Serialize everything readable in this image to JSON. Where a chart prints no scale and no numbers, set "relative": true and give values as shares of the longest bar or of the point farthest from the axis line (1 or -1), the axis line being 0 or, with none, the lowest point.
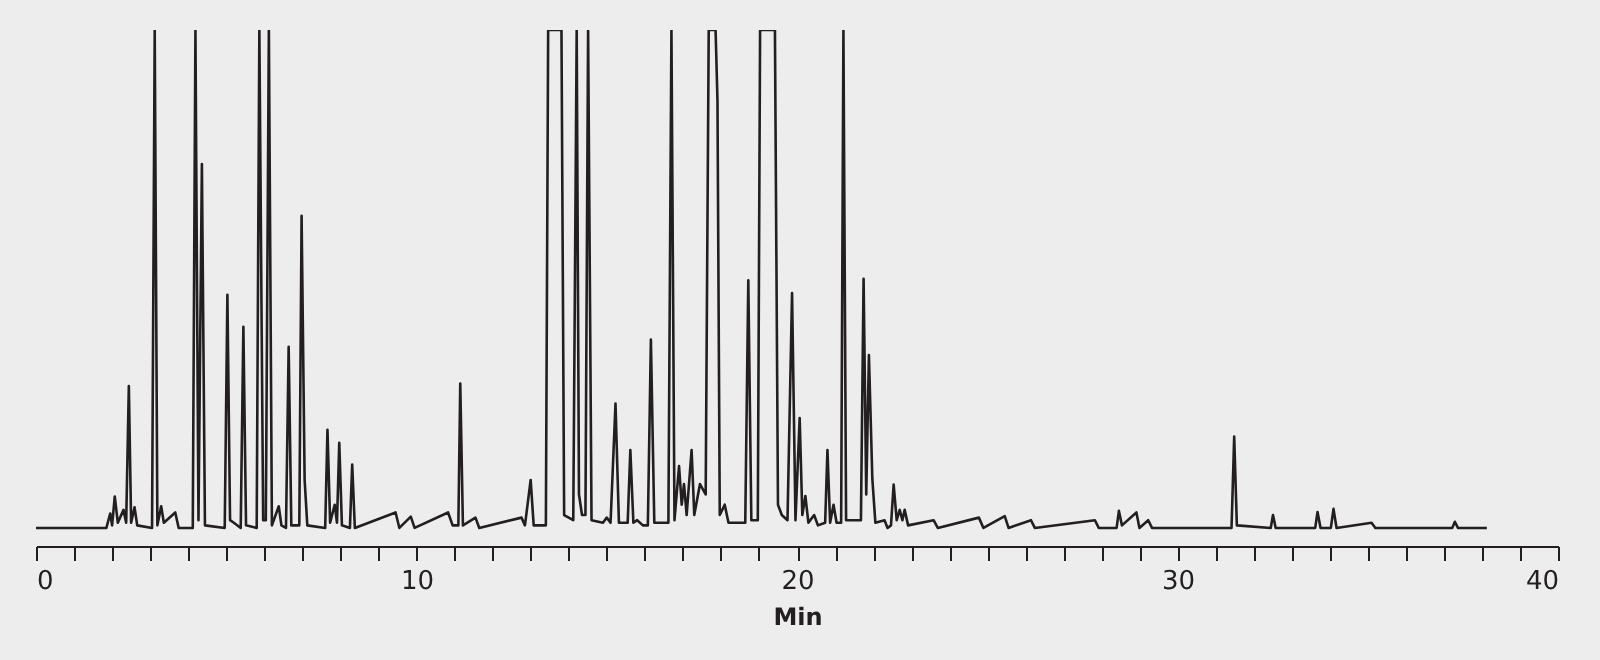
{
  "chart_data": {
    "type": "line",
    "xlabel": "Min",
    "relative": true,
    "color": "#231f20",
    "xlim": [
      0,
      40
    ],
    "xticks": [
      0,
      {
        "value": 1,
        "label": null
      },
      {
        "value": 2,
        "label": null
      },
      {
        "value": 3,
        "label": null
      },
      {
        "value": 4,
        "label": null
      },
      {
        "value": 5,
        "label": null
      },
      {
        "value": 6,
        "label": null
      },
      {
        "value": 7,
        "label": null
      },
      {
        "value": 8,
        "label": null
      },
      {
        "value": 9,
        "label": null
      },
      10,
      {
        "value": 11,
        "label": null
      },
      {
        "value": 12,
        "label": null
      },
      {
        "value": 13,
        "label": null
      },
      {
        "value": 14,
        "label": null
      },
      {
        "value": 15,
        "label": null
      },
      {
        "value": 16,
        "label": null
      },
      {
        "value": 17,
        "label": null
      },
      {
        "value": 18,
        "label": null
      },
      {
        "value": 19,
        "label": null
      },
      20,
      {
        "value": 21,
        "label": null
      },
      {
        "value": 22,
        "label": null
      },
      {
        "value": 23,
        "label": null
      },
      {
        "value": 24,
        "label": null
      },
      {
        "value": 25,
        "label": null
      },
      {
        "value": 26,
        "label": null
      },
      {
        "value": 27,
        "label": null
      },
      {
        "value": 28,
        "label": null
      },
      {
        "value": 29,
        "label": null
      },
      30,
      {
        "value": 31,
        "label": null
      },
      {
        "value": 32,
        "label": null
      },
      {
        "value": 33,
        "label": null
      },
      {
        "value": 34,
        "label": null
      },
      {
        "value": 35,
        "label": null
      },
      {
        "value": 36,
        "label": null
      },
      {
        "value": 37,
        "label": null
      },
      {
        "value": 38,
        "label": null
      },
      {
        "value": 39,
        "label": null
      },
      40
    ],
    "x": [
      0,
      1.85,
      1.95,
      2.0,
      2.07,
      2.15,
      2.3,
      2.37,
      2.44,
      2.5,
      2.59,
      2.66,
      3.05,
      3.12,
      3.19,
      3.29,
      3.36,
      3.66,
      3.75,
      4.12,
      4.19,
      4.27,
      4.36,
      4.44,
      4.96,
      5.03,
      5.1,
      5.2,
      5.38,
      5.45,
      5.52,
      5.8,
      5.87,
      5.97,
      6.04,
      6.12,
      6.2,
      6.38,
      6.45,
      6.57,
      6.64,
      6.71,
      6.92,
      6.98,
      7.06,
      7.13,
      7.6,
      7.66,
      7.73,
      7.85,
      7.91,
      7.97,
      8.04,
      8.25,
      8.31,
      8.38,
      9.45,
      9.55,
      9.85,
      9.95,
      10.83,
      10.95,
      11.1,
      11.15,
      11.22,
      11.55,
      11.65,
      12.76,
      12.85,
      13.0,
      13.08,
      13.4,
      13.46,
      13.81,
      13.88,
      14.12,
      14.21,
      14.27,
      14.35,
      14.44,
      14.51,
      14.6,
      14.9,
      15.0,
      15.1,
      15.23,
      15.32,
      15.55,
      15.62,
      15.7,
      15.8,
      15.95,
      16.08,
      16.16,
      16.25,
      16.62,
      16.7,
      16.78,
      16.9,
      16.97,
      17.03,
      17.1,
      17.23,
      17.3,
      17.45,
      17.6,
      17.68,
      17.86,
      17.91,
      17.97,
      18.1,
      18.2,
      18.64,
      18.72,
      18.8,
      18.97,
      19.03,
      19.42,
      19.5,
      19.6,
      19.75,
      19.87,
      19.96,
      20.07,
      20.14,
      20.22,
      20.3,
      20.45,
      20.55,
      20.74,
      20.8,
      20.87,
      20.96,
      21.04,
      21.16,
      21.22,
      21.29,
      21.68,
      21.75,
      21.82,
      21.89,
      21.98,
      22.06,
      22.3,
      22.38,
      22.47,
      22.54,
      22.62,
      22.7,
      22.77,
      22.83,
      22.92,
      23.59,
      23.7,
      24.78,
      24.9,
      25.46,
      25.56,
      26.15,
      26.25,
      27.83,
      27.93,
      28.4,
      28.46,
      28.54,
      28.92,
      29.0,
      29.23,
      29.33,
      31.42,
      31.49,
      31.56,
      32.45,
      32.51,
      32.58,
      33.62,
      33.68,
      33.76,
      34.03,
      34.1,
      34.18,
      35.1,
      35.2,
      37.22,
      37.29,
      37.37,
      38.13
    ],
    "values": [
      0.035,
      0.035,
      0.063,
      0.04,
      0.096,
      0.045,
      0.07,
      0.045,
      0.31,
      0.045,
      0.075,
      0.04,
      0.035,
      1,
      0.04,
      0.077,
      0.045,
      0.065,
      0.035,
      0.035,
      1,
      0.05,
      0.74,
      0.04,
      0.035,
      0.487,
      0.05,
      0.045,
      0.035,
      0.425,
      0.04,
      0.035,
      1,
      0.05,
      0.05,
      1,
      0.04,
      0.077,
      0.04,
      0.035,
      0.386,
      0.04,
      0.04,
      0.64,
      0.128,
      0.04,
      0.035,
      0.225,
      0.045,
      0.08,
      0.045,
      0.2,
      0.04,
      0.035,
      0.158,
      0.035,
      0.065,
      0.035,
      0.057,
      0.035,
      0.065,
      0.04,
      0.04,
      0.315,
      0.04,
      0.055,
      0.035,
      0.055,
      0.04,
      0.128,
      0.04,
      0.04,
      1,
      1,
      0.06,
      0.05,
      1,
      0.1,
      0.06,
      0.06,
      1,
      0.05,
      0.045,
      0.055,
      0.045,
      0.276,
      0.045,
      0.045,
      0.186,
      0.045,
      0.05,
      0.04,
      0.04,
      0.4,
      0.045,
      0.045,
      1,
      0.05,
      0.155,
      0.08,
      0.12,
      0.06,
      0.186,
      0.06,
      0.12,
      0.1,
      1,
      1,
      0.864,
      0.06,
      0.08,
      0.045,
      0.045,
      0.515,
      0.05,
      0.05,
      1,
      1,
      0.08,
      0.06,
      0.05,
      0.49,
      0.05,
      0.248,
      0.06,
      0.097,
      0.045,
      0.06,
      0.04,
      0.045,
      0.186,
      0.045,
      0.08,
      0.045,
      0.045,
      1,
      0.05,
      0.05,
      0.518,
      0.1,
      0.37,
      0.13,
      0.045,
      0.05,
      0.035,
      0.04,
      0.119,
      0.05,
      0.07,
      0.05,
      0.07,
      0.04,
      0.05,
      0.035,
      0.055,
      0.035,
      0.058,
      0.035,
      0.05,
      0.035,
      0.05,
      0.035,
      0.035,
      0.068,
      0.04,
      0.065,
      0.035,
      0.05,
      0.035,
      0.035,
      0.212,
      0.04,
      0.035,
      0.06,
      0.035,
      0.035,
      0.066,
      0.035,
      0.035,
      0.072,
      0.035,
      0.045,
      0.035,
      0.035,
      0.047,
      0.035,
      0.035
    ]
  }
}
